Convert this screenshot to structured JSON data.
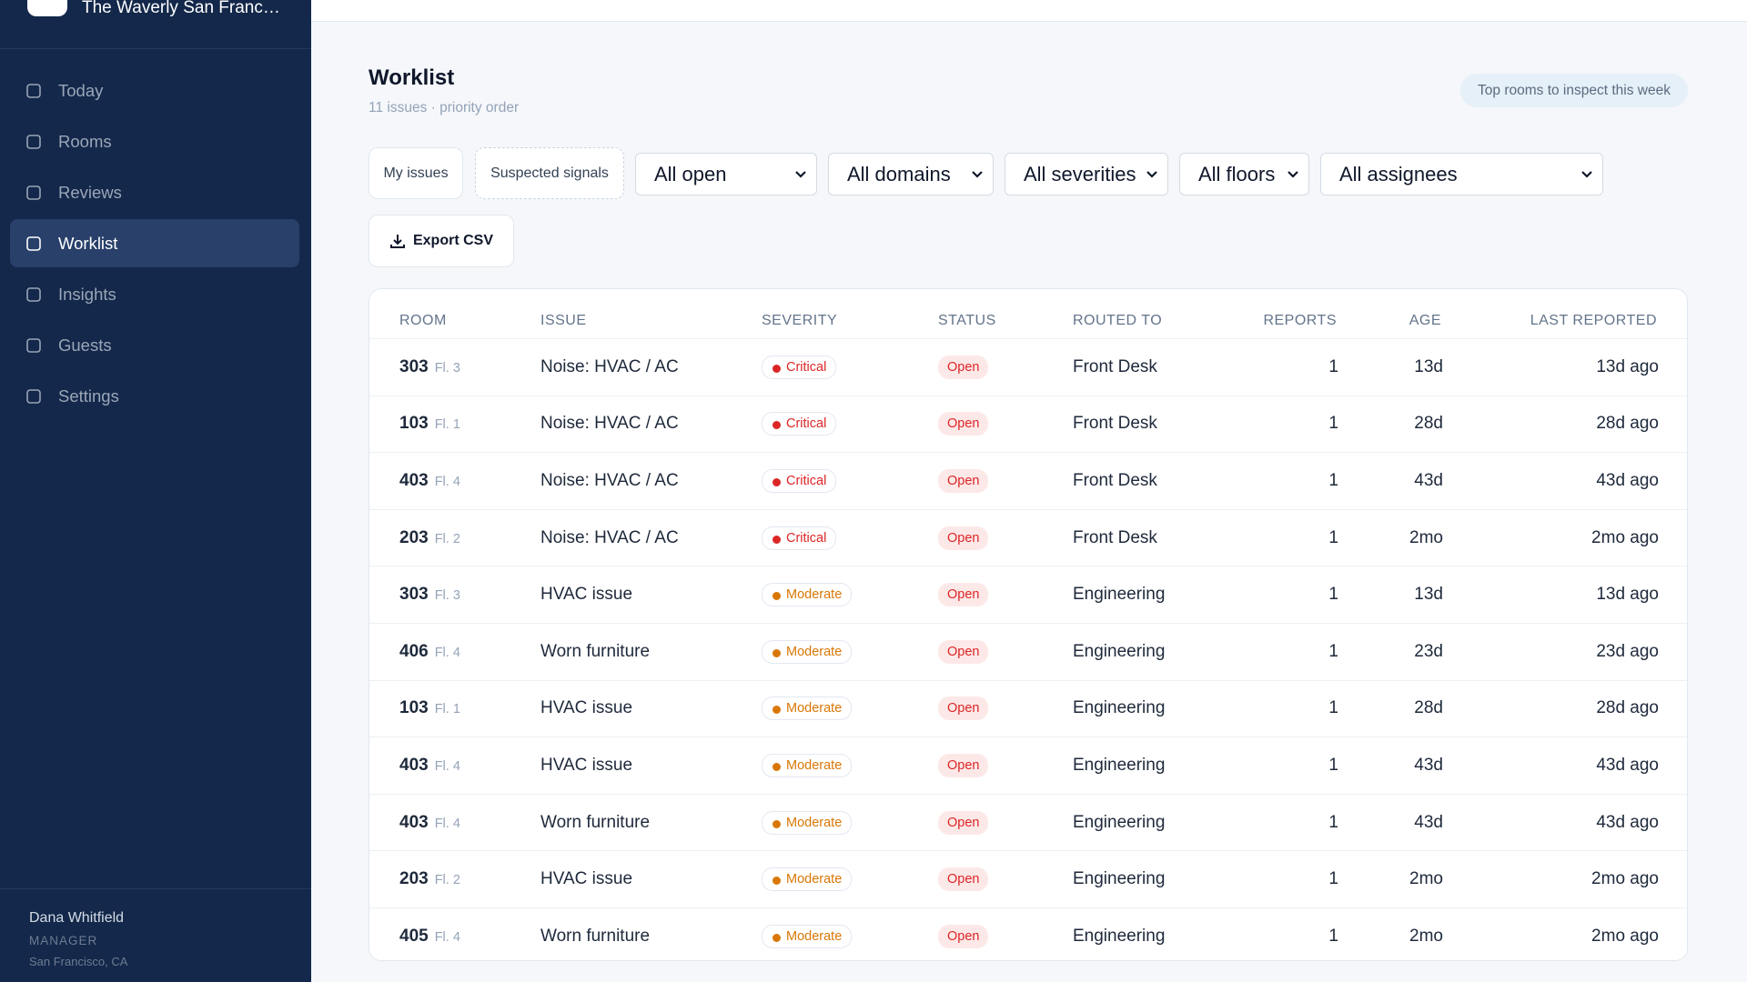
{
  "sidebar": {
    "hotel": "The Waverly San Franc…",
    "nav": [
      "Today",
      "Rooms",
      "Reviews",
      "Worklist",
      "Insights",
      "Guests",
      "Settings"
    ],
    "active": 3,
    "user": {
      "name": "Dana Whitfield",
      "role": "MANAGER",
      "location": "San Francisco, CA"
    }
  },
  "header": {
    "title": "Worklist",
    "subtitle": "11 issues · priority order",
    "badge": "Top rooms to inspect this week"
  },
  "filters": {
    "buttons": [
      "My issues",
      "Suspected signals"
    ],
    "selects": [
      "All open",
      "All domains",
      "All severities",
      "All floors",
      "All assignees"
    ],
    "export": "Export CSV"
  },
  "table": {
    "columns": [
      "ROOM",
      "ISSUE",
      "SEVERITY",
      "STATUS",
      "ROUTED TO",
      "REPORTS",
      "AGE",
      "LAST REPORTED"
    ],
    "rows": [
      {
        "room": "303",
        "floor": "Fl. 3",
        "issue": "Noise: HVAC / AC",
        "severity": "Critical",
        "severity_color": "#dc2626",
        "status": "Open",
        "routed_to": "Front Desk",
        "reports": 1,
        "age": "13d",
        "last_reported": "13d ago"
      },
      {
        "room": "103",
        "floor": "Fl. 1",
        "issue": "Noise: HVAC / AC",
        "severity": "Critical",
        "severity_color": "#dc2626",
        "status": "Open",
        "routed_to": "Front Desk",
        "reports": 1,
        "age": "28d",
        "last_reported": "28d ago"
      },
      {
        "room": "403",
        "floor": "Fl. 4",
        "issue": "Noise: HVAC / AC",
        "severity": "Critical",
        "severity_color": "#dc2626",
        "status": "Open",
        "routed_to": "Front Desk",
        "reports": 1,
        "age": "43d",
        "last_reported": "43d ago"
      },
      {
        "room": "203",
        "floor": "Fl. 2",
        "issue": "Noise: HVAC / AC",
        "severity": "Critical",
        "severity_color": "#dc2626",
        "status": "Open",
        "routed_to": "Front Desk",
        "reports": 1,
        "age": "2mo",
        "last_reported": "2mo ago"
      },
      {
        "room": "303",
        "floor": "Fl. 3",
        "issue": "HVAC issue",
        "severity": "Moderate",
        "severity_color": "#d97706",
        "status": "Open",
        "routed_to": "Engineering",
        "reports": 1,
        "age": "13d",
        "last_reported": "13d ago"
      },
      {
        "room": "406",
        "floor": "Fl. 4",
        "issue": "Worn furniture",
        "severity": "Moderate",
        "severity_color": "#d97706",
        "status": "Open",
        "routed_to": "Engineering",
        "reports": 1,
        "age": "23d",
        "last_reported": "23d ago"
      },
      {
        "room": "103",
        "floor": "Fl. 1",
        "issue": "HVAC issue",
        "severity": "Moderate",
        "severity_color": "#d97706",
        "status": "Open",
        "routed_to": "Engineering",
        "reports": 1,
        "age": "28d",
        "last_reported": "28d ago"
      },
      {
        "room": "403",
        "floor": "Fl. 4",
        "issue": "HVAC issue",
        "severity": "Moderate",
        "severity_color": "#d97706",
        "status": "Open",
        "routed_to": "Engineering",
        "reports": 1,
        "age": "43d",
        "last_reported": "43d ago"
      },
      {
        "room": "403",
        "floor": "Fl. 4",
        "issue": "Worn furniture",
        "severity": "Moderate",
        "severity_color": "#d97706",
        "status": "Open",
        "routed_to": "Engineering",
        "reports": 1,
        "age": "43d",
        "last_reported": "43d ago"
      },
      {
        "room": "203",
        "floor": "Fl. 2",
        "issue": "HVAC issue",
        "severity": "Moderate",
        "severity_color": "#d97706",
        "status": "Open",
        "routed_to": "Engineering",
        "reports": 1,
        "age": "2mo",
        "last_reported": "2mo ago"
      },
      {
        "room": "405",
        "floor": "Fl. 4",
        "issue": "Worn furniture",
        "severity": "Moderate",
        "severity_color": "#d97706",
        "status": "Open",
        "routed_to": "Engineering",
        "reports": 1,
        "age": "2mo",
        "last_reported": "2mo ago"
      }
    ]
  }
}
